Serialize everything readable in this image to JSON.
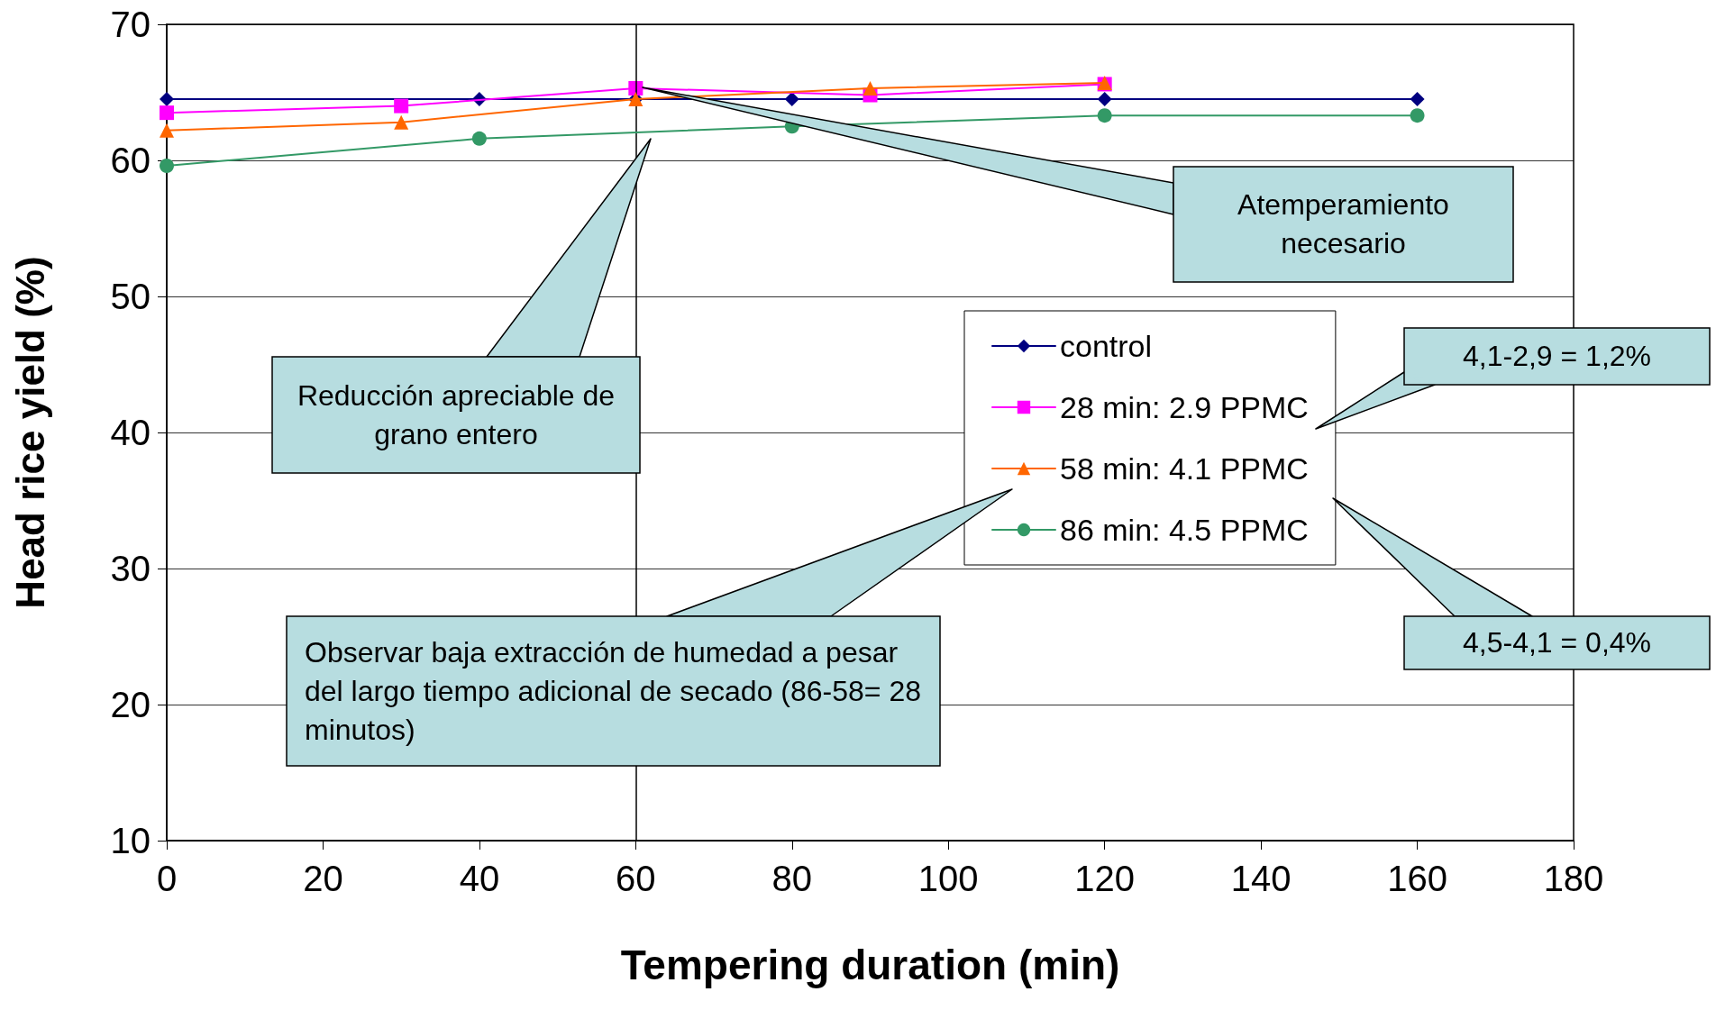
{
  "chart_data": {
    "type": "line",
    "xlabel": "Tempering duration (min)",
    "ylabel": "Head rice yield (%)",
    "xlim": [
      0,
      180
    ],
    "xticks": [
      0,
      20,
      40,
      60,
      80,
      100,
      120,
      140,
      160,
      180
    ],
    "ylim": [
      10,
      70
    ],
    "yticks": [
      10,
      20,
      30,
      40,
      50,
      60,
      70
    ],
    "grid": "y",
    "legend": "right",
    "series": [
      {
        "name": "control",
        "color": "#000080",
        "marker": "diamond",
        "x": [
          0,
          40,
          60,
          80,
          120,
          160
        ],
        "values": [
          64.5,
          64.5,
          64.5,
          64.5,
          64.5,
          64.5
        ]
      },
      {
        "name": "28 min: 2.9 PPMC",
        "color": "#ff00ff",
        "marker": "square",
        "x": [
          0,
          30,
          60,
          90,
          120
        ],
        "values": [
          63.5,
          64.0,
          65.3,
          64.8,
          65.6
        ]
      },
      {
        "name": "58 min: 4.1 PPMC",
        "color": "#ff6600",
        "marker": "triangle",
        "x": [
          0,
          30,
          60,
          90,
          120
        ],
        "values": [
          62.2,
          62.8,
          64.5,
          65.3,
          65.7
        ]
      },
      {
        "name": "86 min: 4.5 PPMC",
        "color": "#339966",
        "marker": "circle",
        "x": [
          0,
          40,
          80,
          120,
          160
        ],
        "values": [
          59.6,
          61.6,
          62.5,
          63.3,
          63.3
        ]
      }
    ],
    "ref_lines": [
      {
        "axis": "x",
        "value": 60,
        "color": "#000000"
      }
    ],
    "annotations": [
      "Atemperamiento necesario",
      "Reducción apreciable de grano entero",
      "Observar baja extracción de humedad a pesar del largo tiempo adicional de secado (86-58= 28 minutos)",
      "4,1-2,9 = 1,2%",
      "4,5-4,1 = 0,4%"
    ]
  }
}
